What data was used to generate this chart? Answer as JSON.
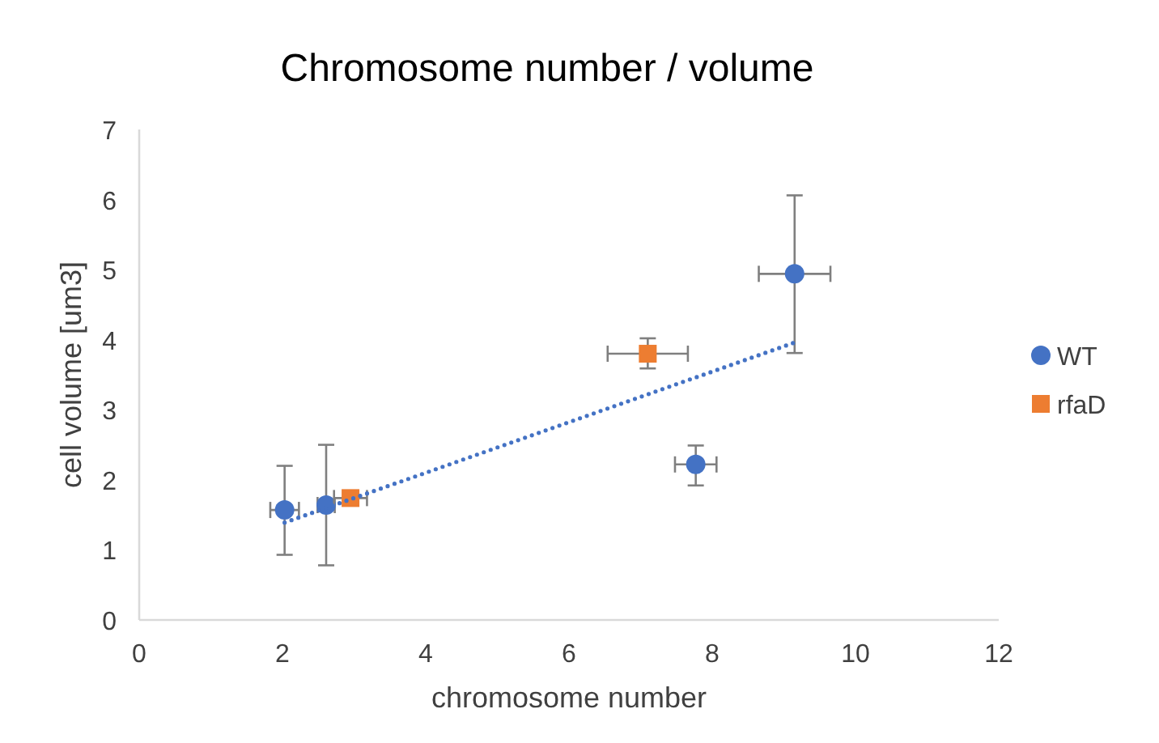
{
  "chart_data": {
    "type": "scatter",
    "title": "Chromosome number / volume",
    "xlabel": "chromosome number",
    "ylabel": "cell volume [um3]",
    "xlim": [
      0,
      12
    ],
    "xticks": [
      0,
      2,
      4,
      6,
      8,
      10,
      12
    ],
    "ylim": [
      0,
      7
    ],
    "yticks": [
      0,
      1,
      2,
      3,
      4,
      5,
      6,
      7
    ],
    "legend": "right",
    "series": [
      {
        "name": "WT",
        "color": "#4472c4",
        "marker": "circle",
        "x": [
          2.03,
          2.61,
          7.77,
          9.15
        ],
        "values": [
          1.57,
          1.64,
          2.22,
          4.94
        ],
        "errors": [
          [
            0.93,
            2.2
          ],
          [
            0.78,
            2.5
          ],
          [
            1.92,
            2.49
          ],
          [
            3.81,
            6.06
          ]
        ],
        "xerrors": [
          0.2,
          0.12,
          0.29,
          0.5
        ]
      },
      {
        "name": "rfaD",
        "color": "#ed7d31",
        "marker": "square",
        "x": [
          2.95,
          7.1
        ],
        "values": [
          1.74,
          3.8
        ],
        "errors": [
          null,
          [
            3.59,
            4.02
          ]
        ],
        "xerrors": [
          0.23,
          0.56
        ]
      },
      {
        "type": "line",
        "color": "#4472c4",
        "line_style": "dotted",
        "marker": "none",
        "x": [
          2.03,
          9.15
        ],
        "values": [
          1.39,
          3.96
        ]
      }
    ]
  }
}
